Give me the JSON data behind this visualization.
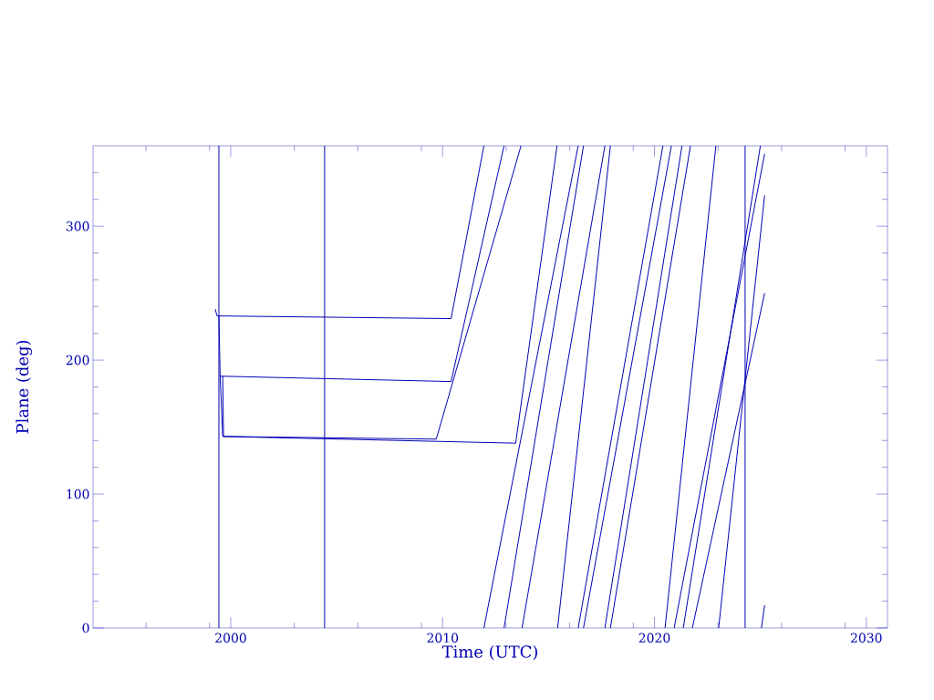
{
  "chart_data": {
    "type": "line",
    "xlabel": "Time (UTC)",
    "ylabel": "Plane (deg)",
    "color": "#0000b4",
    "grid": false,
    "xlim": [
      1993.5,
      2031
    ],
    "ylim": [
      0,
      360
    ],
    "xticks": [
      {
        "value": 1996,
        "label": null
      },
      {
        "value": 1999,
        "label": null
      },
      2000,
      {
        "value": 2003,
        "label": null
      },
      {
        "value": 2006,
        "label": null
      },
      {
        "value": 2009,
        "label": null
      },
      2010,
      {
        "value": 2013,
        "label": null
      },
      {
        "value": 2016,
        "label": null
      },
      {
        "value": 2019,
        "label": null
      },
      2020,
      {
        "value": 2023,
        "label": null
      },
      {
        "value": 2026,
        "label": null
      },
      {
        "value": 2029,
        "label": null
      },
      2030
    ],
    "yticks": [
      0,
      {
        "value": 20,
        "label": null
      },
      {
        "value": 40,
        "label": null
      },
      {
        "value": 60,
        "label": null
      },
      {
        "value": 80,
        "label": null
      },
      100,
      {
        "value": 120,
        "label": null
      },
      {
        "value": 140,
        "label": null
      },
      {
        "value": 160,
        "label": null
      },
      {
        "value": 180,
        "label": null
      },
      200,
      {
        "value": 220,
        "label": null
      },
      {
        "value": 240,
        "label": null
      },
      {
        "value": 260,
        "label": null
      },
      {
        "value": 280,
        "label": null
      },
      300,
      {
        "value": 320,
        "label": null
      },
      {
        "value": 340,
        "label": null
      }
    ],
    "ref_lines": [
      {
        "axis": "x",
        "value": 1999.44
      },
      {
        "axis": "x",
        "value": 2004.43
      },
      {
        "axis": "x",
        "value": 2024.28
      }
    ],
    "series": [
      {
        "x": [
          1999.27,
          1999.35,
          2010.4,
          2011.95
        ],
        "values": [
          238,
          233,
          231,
          360
        ]
      },
      {
        "x": [
          1999.44,
          1999.5,
          2010.4,
          2012.9
        ],
        "values": [
          233,
          188,
          184,
          360
        ]
      },
      {
        "x": [
          1999.5,
          1999.62,
          2009.7,
          2013.7
        ],
        "values": [
          188,
          143,
          141,
          360
        ]
      },
      {
        "x": [
          1999.62,
          1999.66,
          2013.45,
          2015.4
        ],
        "values": [
          188,
          143,
          138,
          360
        ]
      },
      {
        "x": [
          2011.95,
          2016.4
        ],
        "values": [
          0,
          360
        ]
      },
      {
        "x": [
          2012.9,
          2016.65
        ],
        "values": [
          0,
          360
        ]
      },
      {
        "x": [
          2013.75,
          2017.66
        ],
        "values": [
          0,
          360
        ]
      },
      {
        "x": [
          2015.43,
          2017.92
        ],
        "values": [
          0,
          360
        ]
      },
      {
        "x": [
          2016.4,
          2020.4
        ],
        "values": [
          0,
          360
        ]
      },
      {
        "x": [
          2016.65,
          2020.8
        ],
        "values": [
          0,
          360
        ]
      },
      {
        "x": [
          2017.66,
          2021.3
        ],
        "values": [
          0,
          360
        ]
      },
      {
        "x": [
          2017.92,
          2021.7
        ],
        "values": [
          0,
          360
        ]
      },
      {
        "x": [
          2020.5,
          2022.9
        ],
        "values": [
          0,
          360
        ]
      },
      {
        "x": [
          2020.93,
          2025.2
        ],
        "values": [
          0,
          354
        ]
      },
      {
        "x": [
          2021.36,
          2025.0
        ],
        "values": [
          0,
          360
        ]
      },
      {
        "x": [
          2021.79,
          2025.2
        ],
        "values": [
          0,
          250
        ]
      },
      {
        "x": [
          2023.03,
          2025.2
        ],
        "values": [
          0,
          323
        ]
      },
      {
        "x": [
          2025.05,
          2025.2
        ],
        "values": [
          0,
          17
        ]
      }
    ]
  }
}
